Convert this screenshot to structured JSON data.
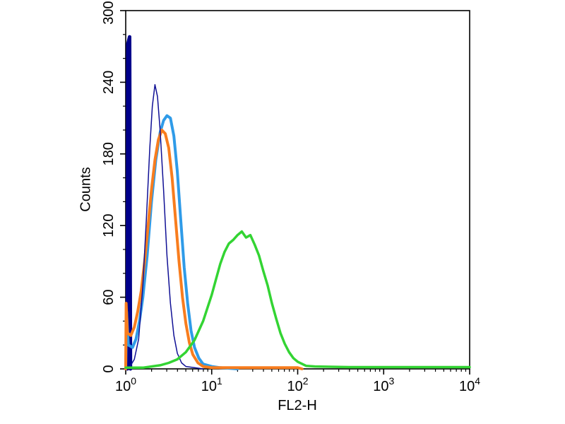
{
  "chart_data": {
    "type": "line",
    "subtype": "flow-cytometry-histogram",
    "title": "",
    "xlabel": "FL2-H",
    "ylabel": "Counts",
    "x_scale": "log10",
    "xlim_log": [
      0,
      4
    ],
    "ylim": [
      0,
      300
    ],
    "x_major_ticks_exp": [
      0,
      1,
      2,
      3,
      4
    ],
    "y_major_ticks": [
      0,
      60,
      120,
      180,
      240,
      300
    ],
    "y_minor_step": 20,
    "background_color": "#ffffff",
    "frame_color": "#000000",
    "series": [
      {
        "name": "navy-left-edge-spike",
        "color": "#00008b",
        "width": 5,
        "points": [
          [
            0.02,
            0
          ],
          [
            0.025,
            272
          ],
          [
            0.045,
            278
          ],
          [
            0.055,
            0
          ]
        ]
      },
      {
        "name": "blue-isotype",
        "color": "#2f9be8",
        "width": 4,
        "points": [
          [
            0.0,
            0
          ],
          [
            0.01,
            48
          ],
          [
            0.03,
            20
          ],
          [
            0.08,
            18
          ],
          [
            0.12,
            25
          ],
          [
            0.16,
            40
          ],
          [
            0.2,
            60
          ],
          [
            0.25,
            95
          ],
          [
            0.3,
            140
          ],
          [
            0.35,
            175
          ],
          [
            0.4,
            198
          ],
          [
            0.44,
            208
          ],
          [
            0.48,
            212
          ],
          [
            0.52,
            210
          ],
          [
            0.56,
            195
          ],
          [
            0.6,
            165
          ],
          [
            0.64,
            125
          ],
          [
            0.68,
            85
          ],
          [
            0.72,
            55
          ],
          [
            0.76,
            32
          ],
          [
            0.8,
            18
          ],
          [
            0.85,
            9
          ],
          [
            0.9,
            4
          ],
          [
            1.0,
            2
          ],
          [
            1.1,
            1
          ],
          [
            1.3,
            0
          ]
        ]
      },
      {
        "name": "orange-control",
        "color": "#f87d1e",
        "width": 4,
        "points": [
          [
            0.0,
            0
          ],
          [
            0.005,
            55
          ],
          [
            0.02,
            30
          ],
          [
            0.06,
            28
          ],
          [
            0.1,
            35
          ],
          [
            0.14,
            48
          ],
          [
            0.18,
            65
          ],
          [
            0.22,
            90
          ],
          [
            0.26,
            120
          ],
          [
            0.3,
            150
          ],
          [
            0.34,
            175
          ],
          [
            0.38,
            192
          ],
          [
            0.42,
            200
          ],
          [
            0.46,
            197
          ],
          [
            0.5,
            185
          ],
          [
            0.54,
            160
          ],
          [
            0.58,
            125
          ],
          [
            0.62,
            90
          ],
          [
            0.66,
            60
          ],
          [
            0.7,
            38
          ],
          [
            0.74,
            22
          ],
          [
            0.78,
            12
          ],
          [
            0.84,
            5
          ],
          [
            0.9,
            2
          ],
          [
            1.0,
            1
          ],
          [
            1.2,
            1
          ],
          [
            1.6,
            1
          ],
          [
            2.0,
            1
          ],
          [
            2.05,
            0
          ]
        ]
      },
      {
        "name": "navy-thin-unstained",
        "color": "#101095",
        "width": 1.5,
        "points": [
          [
            0.05,
            2
          ],
          [
            0.1,
            8
          ],
          [
            0.15,
            25
          ],
          [
            0.2,
            70
          ],
          [
            0.24,
            125
          ],
          [
            0.28,
            185
          ],
          [
            0.31,
            220
          ],
          [
            0.34,
            238
          ],
          [
            0.37,
            228
          ],
          [
            0.4,
            200
          ],
          [
            0.44,
            150
          ],
          [
            0.48,
            95
          ],
          [
            0.52,
            55
          ],
          [
            0.56,
            28
          ],
          [
            0.6,
            13
          ],
          [
            0.65,
            5
          ],
          [
            0.7,
            2
          ],
          [
            0.8,
            1
          ],
          [
            0.9,
            0
          ]
        ]
      },
      {
        "name": "green-stained",
        "color": "#33d433",
        "width": 3.5,
        "points": [
          [
            0.0,
            1
          ],
          [
            0.1,
            1
          ],
          [
            0.2,
            1
          ],
          [
            0.3,
            2
          ],
          [
            0.4,
            3
          ],
          [
            0.5,
            5
          ],
          [
            0.6,
            8
          ],
          [
            0.7,
            14
          ],
          [
            0.8,
            24
          ],
          [
            0.9,
            40
          ],
          [
            1.0,
            62
          ],
          [
            1.05,
            75
          ],
          [
            1.1,
            88
          ],
          [
            1.15,
            98
          ],
          [
            1.2,
            105
          ],
          [
            1.25,
            108
          ],
          [
            1.3,
            112
          ],
          [
            1.35,
            115
          ],
          [
            1.4,
            110
          ],
          [
            1.45,
            112
          ],
          [
            1.5,
            104
          ],
          [
            1.55,
            95
          ],
          [
            1.6,
            82
          ],
          [
            1.65,
            70
          ],
          [
            1.7,
            55
          ],
          [
            1.75,
            42
          ],
          [
            1.8,
            30
          ],
          [
            1.85,
            21
          ],
          [
            1.9,
            14
          ],
          [
            1.95,
            9
          ],
          [
            2.0,
            6
          ],
          [
            2.1,
            2.5
          ],
          [
            2.2,
            2
          ],
          [
            2.6,
            1.5
          ],
          [
            3.0,
            1.5
          ],
          [
            3.5,
            1.5
          ],
          [
            4.0,
            1.5
          ]
        ]
      }
    ]
  }
}
